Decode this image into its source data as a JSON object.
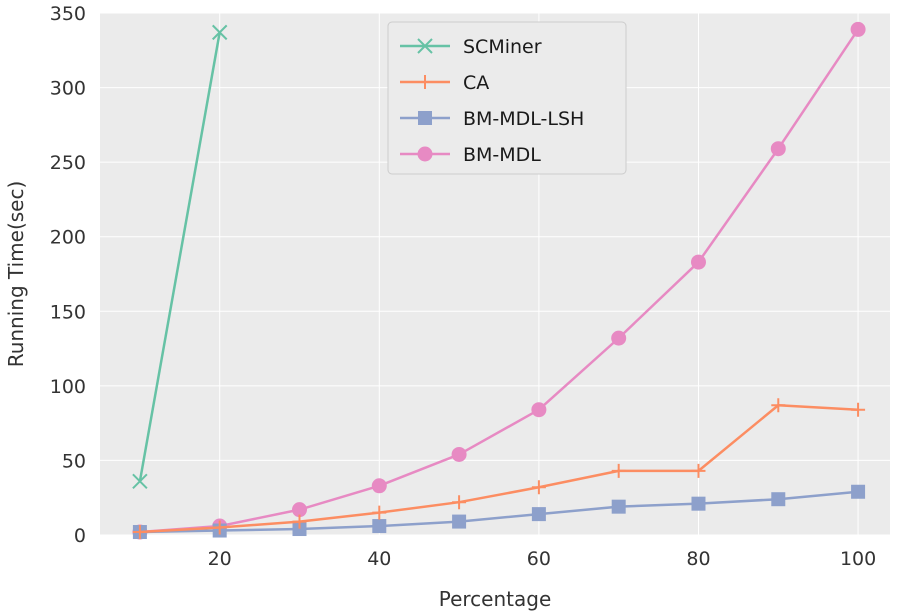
{
  "chart_data": {
    "type": "line",
    "title": "",
    "xlabel": "Percentage",
    "ylabel": "Running Time(sec)",
    "xlim": [
      5,
      104
    ],
    "ylim": [
      0,
      350
    ],
    "xticks": [
      20,
      40,
      60,
      80,
      100
    ],
    "yticks": [
      0,
      50,
      100,
      150,
      200,
      250,
      300,
      350
    ],
    "grid": true,
    "background": "#ebebeb",
    "legend_position": "upper-center",
    "series": [
      {
        "name": "SCMiner",
        "color": "#66c2a5",
        "marker": "x",
        "x": [
          10,
          20
        ],
        "y": [
          36,
          337
        ]
      },
      {
        "name": "CA",
        "color": "#fc8d62",
        "marker": "plus",
        "x": [
          10,
          20,
          30,
          40,
          50,
          60,
          70,
          80,
          90,
          100
        ],
        "y": [
          2,
          5,
          9,
          15,
          22,
          32,
          43,
          43,
          87,
          84
        ]
      },
      {
        "name": "BM-MDL-LSH",
        "color": "#8da0cb",
        "marker": "square",
        "x": [
          10,
          20,
          30,
          40,
          50,
          60,
          70,
          80,
          90,
          100
        ],
        "y": [
          2,
          3,
          4,
          6,
          9,
          14,
          19,
          21,
          24,
          29
        ]
      },
      {
        "name": "BM-MDL",
        "color": "#e78ac3",
        "marker": "circle",
        "x": [
          10,
          20,
          30,
          40,
          50,
          60,
          70,
          80,
          90,
          100
        ],
        "y": [
          2,
          6,
          17,
          33,
          54,
          84,
          132,
          183,
          259,
          339
        ]
      }
    ]
  }
}
